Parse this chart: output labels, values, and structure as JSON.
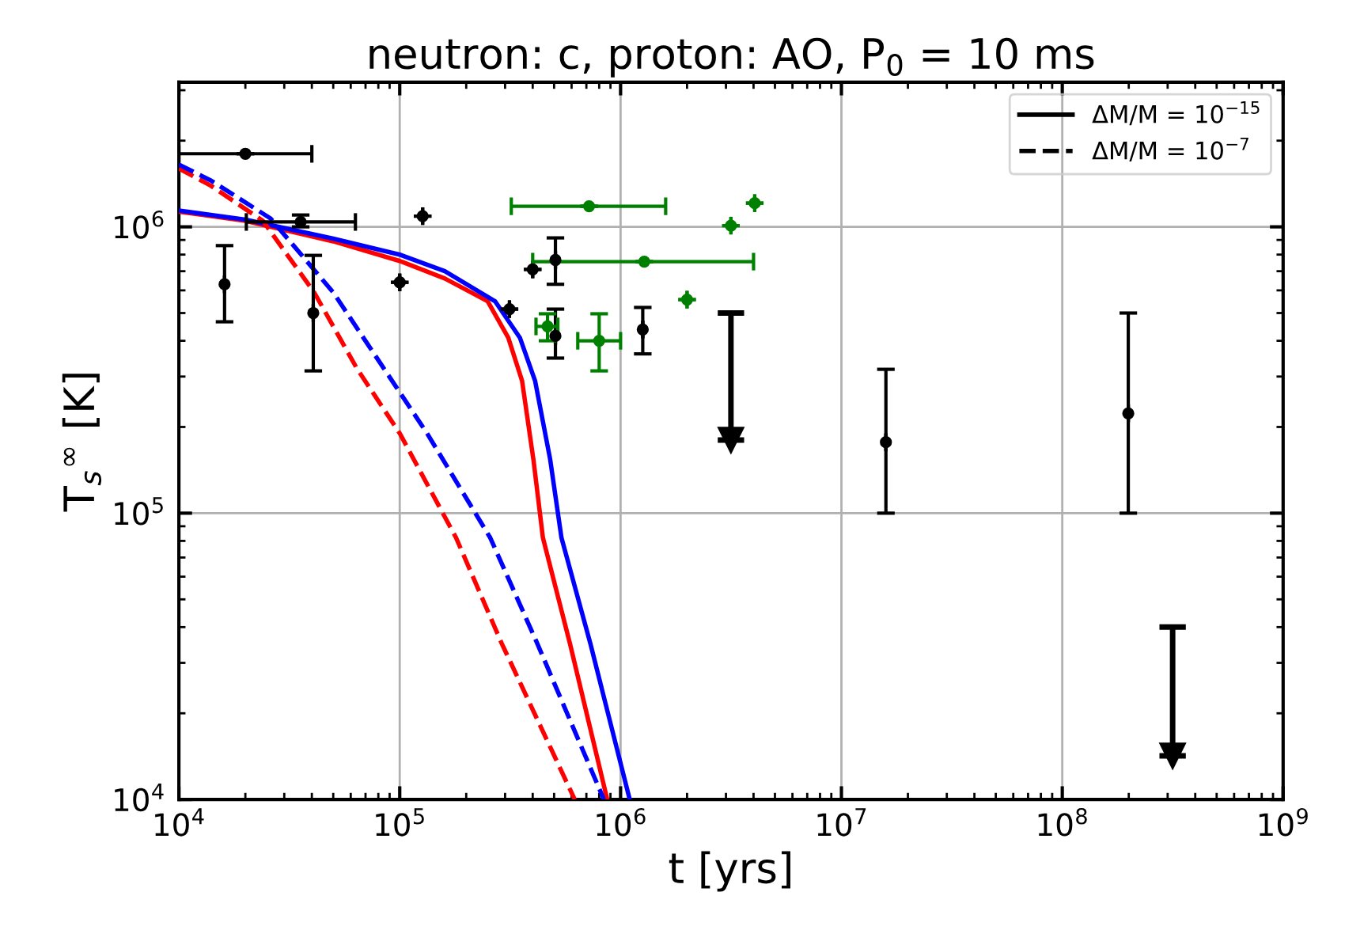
{
  "chart_data": {
    "type": "line",
    "title": "neutron: c, proton: AO, P$_{0}$ = 10 ms",
    "xlabel": "t [yrs]",
    "ylabel": "T$_{s}$$^{∞}$ [K]",
    "log": "xy",
    "xlim": [
      10000,
      1000000000
    ],
    "ylim": [
      10000,
      3200000
    ],
    "xticks": [
      {
        "value": 10000,
        "label": "10$^{4}$"
      },
      {
        "value": 100000,
        "label": "10$^{5}$"
      },
      {
        "value": 1000000,
        "label": "10$^{6}$"
      },
      {
        "value": 10000000,
        "label": "10$^{7}$"
      },
      {
        "value": 100000000,
        "label": "10$^{8}$"
      },
      {
        "value": 1000000000,
        "label": "10$^{9}$"
      }
    ],
    "yticks": [
      {
        "value": 10000,
        "label": "10$^{4}$"
      },
      {
        "value": 100000,
        "label": "10$^{5}$"
      },
      {
        "value": 1000000,
        "label": "10$^{6}$"
      }
    ],
    "grid": true,
    "legend": "top right",
    "series": [
      {
        "name": "ΔM/M = 10$^{−15}$",
        "line_style": "solid",
        "color": "#ff0000",
        "x": [
          10000,
          20000,
          50000,
          100000,
          160000,
          250000,
          310000,
          358000,
          403000,
          445000,
          590000,
          870000
        ],
        "values": [
          1130000,
          1050000,
          890000,
          760000,
          660000,
          550000,
          410000,
          290000,
          154000,
          82000,
          35000,
          10000
        ]
      },
      {
        "line_style": "solid",
        "color": "#0000ff",
        "x": [
          10000,
          20000,
          50000,
          100000,
          160000,
          270000,
          350000,
          410000,
          480000,
          540000,
          730000,
          1100000
        ],
        "values": [
          1140000,
          1060000,
          910000,
          800000,
          700000,
          550000,
          410000,
          290000,
          154000,
          82000,
          35000,
          10000
        ]
      },
      {
        "name": "ΔM/M = 10$^{−7}$",
        "line_style": "dashed",
        "color": "#ff0000",
        "x": [
          10000,
          14000,
          24000,
          41000,
          64000,
          100000,
          180000,
          290000,
          620000
        ],
        "values": [
          1600000,
          1390000,
          1050000,
          590000,
          320000,
          190000,
          82000,
          35000,
          10000
        ]
      },
      {
        "line_style": "dashed",
        "color": "#0000ff",
        "x": [
          10000,
          14000,
          26000,
          50000,
          133000,
          257000,
          420000,
          840000
        ],
        "values": [
          1650000,
          1450000,
          1070000,
          590000,
          190000,
          82000,
          35000,
          10000
        ]
      },
      {
        "type": "scatter",
        "marker": "circle",
        "color": "#000000",
        "x": [
          20000,
          35600,
          16100,
          40600,
          127000,
          100000,
          314000,
          400000,
          507000,
          507000,
          1260000,
          15900000,
          199000000
        ],
        "values": [
          1800000,
          1040000,
          630000,
          500000,
          1090000,
          640000,
          516000,
          710000,
          766000,
          416000,
          438000,
          177000,
          223000
        ],
        "errors": [
          null,
          [
            1000000,
            1100000
          ],
          [
            466000,
            860000
          ],
          [
            314000,
            795000
          ],
          null,
          null,
          null,
          null,
          [
            630000,
            915000
          ],
          [
            348000,
            516000
          ],
          [
            360000,
            523000
          ],
          [
            100000,
            318000
          ],
          [
            100000,
            500000
          ]
        ],
        "xerrors": [
          [
            10000,
            40000
          ],
          [
            20200,
            63000
          ],
          null,
          null,
          null,
          null,
          null,
          null,
          null,
          null,
          null,
          null,
          null
        ]
      },
      {
        "type": "scatter",
        "marker": "triangle",
        "color": "#000000",
        "x": [
          3160000,
          316000000
        ],
        "values": [
          180000,
          14200
        ],
        "errors": [
          [
            180000,
            500000
          ],
          [
            14200,
            40000
          ]
        ]
      },
      {
        "type": "scatter",
        "marker": "circle",
        "color": "#008000",
        "x": [
          720000,
          1280000,
          3160000,
          4050000,
          2000000,
          467000,
          800000
        ],
        "values": [
          1180000,
          756000,
          1010000,
          1210000,
          557000,
          449000,
          400000
        ],
        "errors": [
          null,
          null,
          null,
          null,
          null,
          [
            400000,
            497000
          ],
          [
            314000,
            497000
          ]
        ],
        "xerrors": [
          [
            320000,
            1600000
          ],
          [
            400000,
            4000000
          ],
          null,
          null,
          null,
          [
            414000,
            520000
          ],
          [
            640000,
            1000000
          ]
        ]
      }
    ]
  }
}
